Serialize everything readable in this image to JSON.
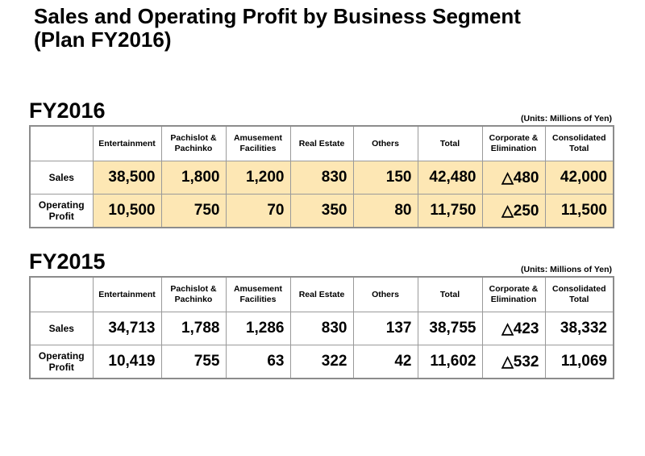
{
  "title_line1": "Sales and Operating Profit by Business Segment",
  "title_line2": "(Plan FY2016)",
  "columns": [
    "Entertainment",
    "Pachislot &\nPachinko",
    "Amusement\nFacilities",
    "Real Estate",
    "Others",
    "Total",
    "Corporate &\nElimination",
    "Consolidated\nTotal"
  ],
  "row_labels": [
    "Sales",
    "Operating\nProfit"
  ],
  "colors": {
    "plan_fill": "#fde7b4",
    "border": "#8c8c8c"
  },
  "tables": [
    {
      "heading": "FY2016",
      "units": "(Units: Millions of Yen)",
      "rows": [
        [
          "38,500",
          "1,800",
          "1,200",
          "830",
          "150",
          "42,480",
          "△480",
          "42,000"
        ],
        [
          "10,500",
          "750",
          "70",
          "350",
          "80",
          "11,750",
          "△250",
          "11,500"
        ]
      ]
    },
    {
      "heading": "FY2015",
      "units": "(Units: Millions of Yen)",
      "rows": [
        [
          "34,713",
          "1,788",
          "1,286",
          "830",
          "137",
          "38,755",
          "△423",
          "38,332"
        ],
        [
          "10,419",
          "755",
          "63",
          "322",
          "42",
          "11,602",
          "△532",
          "11,069"
        ]
      ]
    }
  ]
}
